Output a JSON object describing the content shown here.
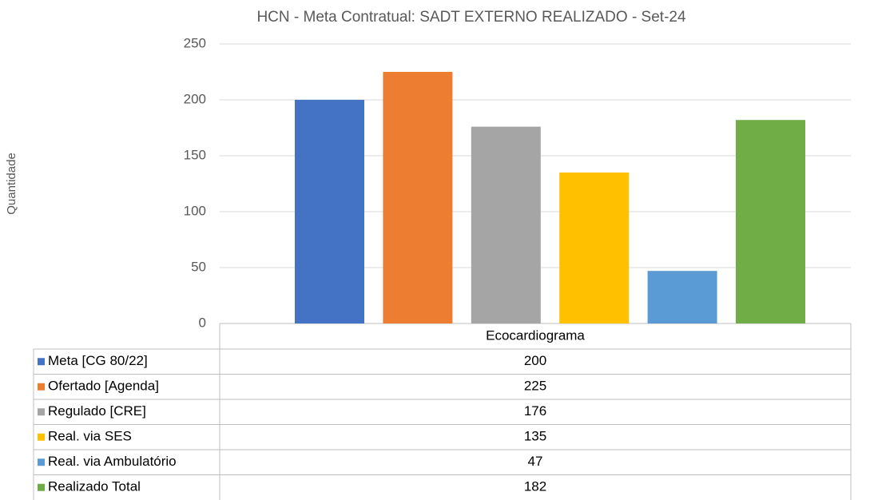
{
  "chart_data": {
    "type": "bar",
    "title": "HCN - Meta Contratual: SADT EXTERNO REALIZADO - Set-24",
    "y_label": "Quantidade",
    "categories": [
      "Ecocardiograma"
    ],
    "series": [
      {
        "name": "Meta [CG 80/22]",
        "color": "#4472c4",
        "values": [
          200
        ]
      },
      {
        "name": "Ofertado [Agenda]",
        "color": "#ed7d31",
        "values": [
          225
        ]
      },
      {
        "name": "Regulado [CRE]",
        "color": "#a5a5a5",
        "values": [
          176
        ]
      },
      {
        "name": "Real. via SES",
        "color": "#ffc000",
        "values": [
          135
        ]
      },
      {
        "name": "Real. via Ambulatório",
        "color": "#5b9bd5",
        "values": [
          47
        ]
      },
      {
        "name": "Realizado Total",
        "color": "#70ad47",
        "values": [
          182
        ]
      }
    ],
    "ylim": [
      0,
      250
    ],
    "yticks": [
      0,
      50,
      100,
      150,
      200,
      250
    ],
    "grid": true
  }
}
